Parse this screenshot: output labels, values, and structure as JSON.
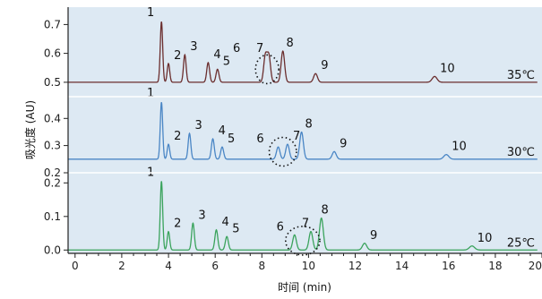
{
  "chart_data": {
    "type": "line",
    "xlabel": "时间 (min)",
    "ylabel": "吸光度 (AU)",
    "xlim": [
      -0.3,
      20
    ],
    "x_ticks": [
      "0",
      "2",
      "4",
      "6",
      "8",
      "10",
      "12",
      "14",
      "16",
      "18",
      "20"
    ],
    "panels": [
      {
        "name": "35℃",
        "color": "#6b2e2e",
        "ylim": [
          0.45,
          0.76
        ],
        "y_ticks": [
          "0.5",
          "0.6",
          "0.7"
        ],
        "baseline": 0.5,
        "peaks": [
          {
            "label": "1",
            "t": 3.7,
            "h": 0.21
          },
          {
            "label": "2",
            "t": 4.0,
            "h": 0.065
          },
          {
            "label": "3",
            "t": 4.7,
            "h": 0.095
          },
          {
            "label": "4",
            "t": 5.7,
            "h": 0.068
          },
          {
            "label": "5",
            "t": 6.1,
            "h": 0.045
          },
          {
            "label": "6",
            "t": 8.15,
            "h": 0.09
          },
          {
            "label": "7",
            "t": 8.3,
            "h": 0.09
          },
          {
            "label": "8",
            "t": 8.9,
            "h": 0.108
          },
          {
            "label": "9",
            "t": 10.3,
            "h": 0.03
          },
          {
            "label": "10",
            "t": 15.4,
            "h": 0.02
          }
        ]
      },
      {
        "name": "30℃",
        "color": "#4a86c5",
        "ylim": [
          0.2,
          0.48
        ],
        "y_ticks": [
          "0.2",
          "0.3",
          "0.4"
        ],
        "baseline": 0.25,
        "peaks": [
          {
            "label": "1",
            "t": 3.7,
            "h": 0.21
          },
          {
            "label": "2",
            "t": 4.0,
            "h": 0.055
          },
          {
            "label": "3",
            "t": 4.9,
            "h": 0.095
          },
          {
            "label": "4",
            "t": 5.9,
            "h": 0.075
          },
          {
            "label": "5",
            "t": 6.3,
            "h": 0.045
          },
          {
            "label": "6",
            "t": 8.7,
            "h": 0.045
          },
          {
            "label": "7",
            "t": 9.1,
            "h": 0.055
          },
          {
            "label": "8",
            "t": 9.7,
            "h": 0.1
          },
          {
            "label": "9",
            "t": 11.1,
            "h": 0.028
          },
          {
            "label": "10",
            "t": 15.9,
            "h": 0.017
          }
        ]
      },
      {
        "name": "25℃",
        "color": "#3aa35c",
        "ylim": [
          -0.01,
          0.23
        ],
        "y_ticks": [
          "0.0",
          "0.1",
          "0.2"
        ],
        "baseline": 0.0,
        "peaks": [
          {
            "label": "1",
            "t": 3.7,
            "h": 0.205
          },
          {
            "label": "2",
            "t": 4.0,
            "h": 0.055
          },
          {
            "label": "3",
            "t": 5.05,
            "h": 0.08
          },
          {
            "label": "4",
            "t": 6.05,
            "h": 0.06
          },
          {
            "label": "5",
            "t": 6.5,
            "h": 0.04
          },
          {
            "label": "6",
            "t": 9.4,
            "h": 0.045
          },
          {
            "label": "7",
            "t": 10.1,
            "h": 0.055
          },
          {
            "label": "8",
            "t": 10.55,
            "h": 0.095
          },
          {
            "label": "9",
            "t": 12.4,
            "h": 0.02
          },
          {
            "label": "10",
            "t": 17.0,
            "h": 0.012
          }
        ]
      }
    ]
  }
}
